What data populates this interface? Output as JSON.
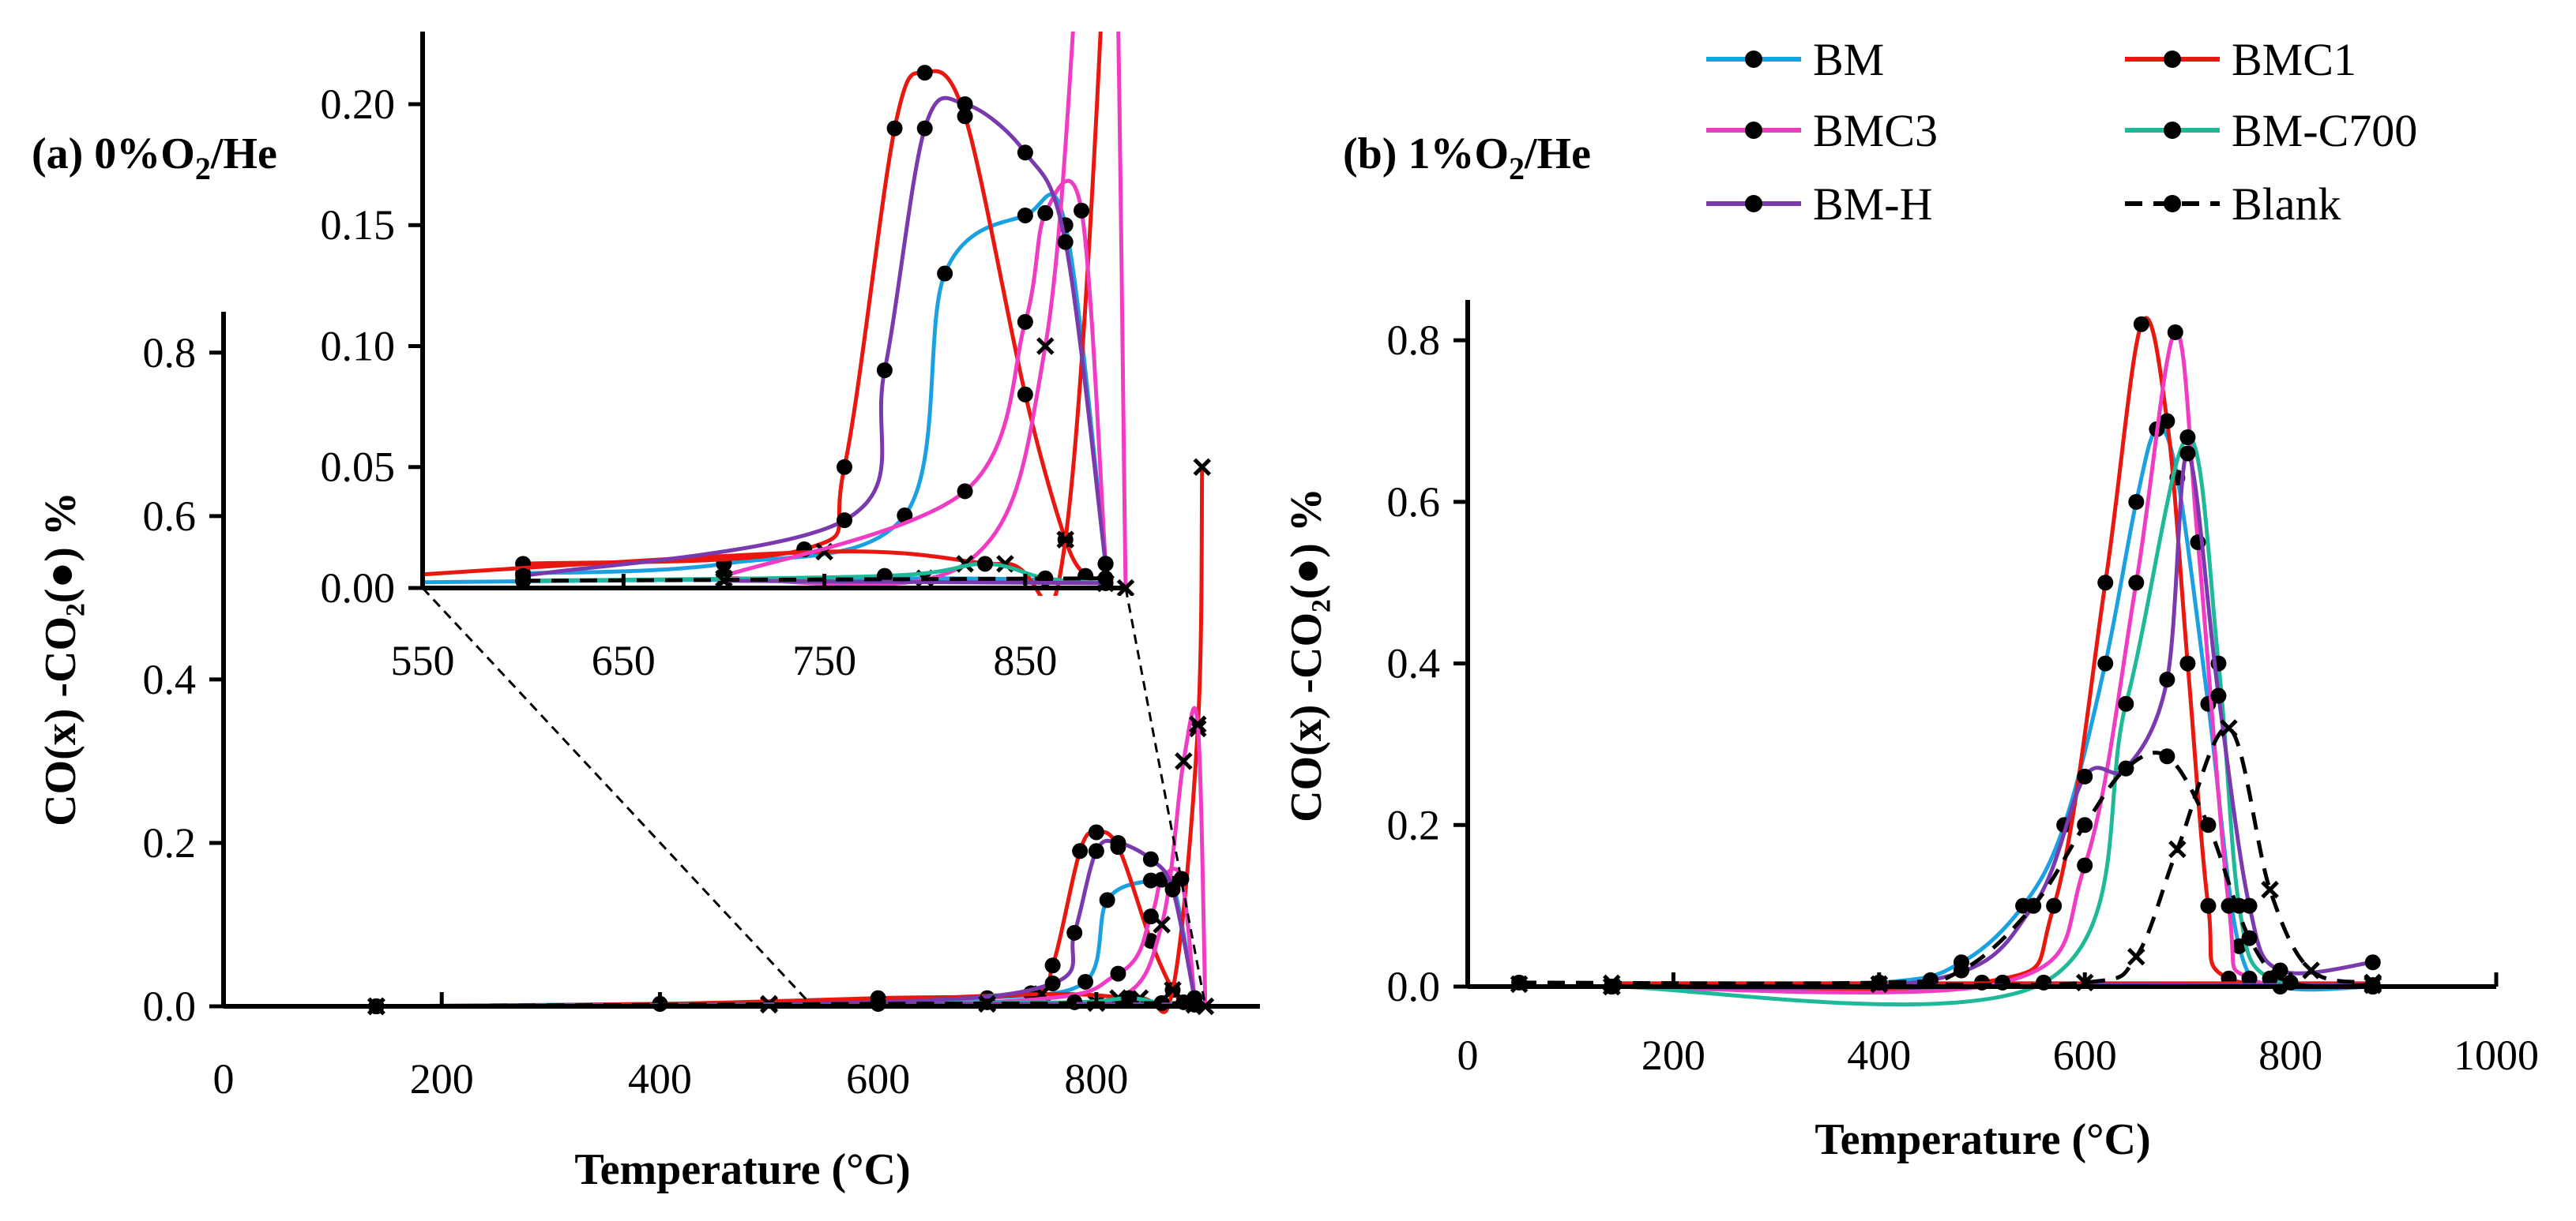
{
  "chart_data": [
    {
      "id": "a",
      "type": "line",
      "title": "(a) 0%O",
      "title_sub": "2",
      "title_suffix": "/He",
      "xlabel": "Temperature (°C)",
      "ylabel": "CO(x) -CO₂(●) %",
      "xlim": [
        0,
        950
      ],
      "ylim": [
        0,
        0.85
      ],
      "xticks": [
        0,
        200,
        400,
        600,
        800
      ],
      "yticks": [
        "0.0",
        "0.2",
        "0.4",
        "0.6",
        "0.8"
      ],
      "series": [
        {
          "name": "BM",
          "color": "#1BA1E2",
          "co2": [
            [
              140,
              0
            ],
            [
              400,
              0.003
            ],
            [
              600,
              0.006
            ],
            [
              700,
              0.01
            ],
            [
              790,
              0.03
            ],
            [
              810,
              0.13
            ],
            [
              850,
              0.154
            ],
            [
              870,
              0.15
            ],
            [
              890,
              0.01
            ]
          ],
          "co": [
            [
              140,
              0
            ],
            [
              500,
              0.002
            ],
            [
              800,
              0.004
            ],
            [
              890,
              0.002
            ]
          ]
        },
        {
          "name": "BMC1",
          "color": "#E8170F",
          "co2": [
            [
              140,
              0
            ],
            [
              400,
              0.003
            ],
            [
              600,
              0.01
            ],
            [
              740,
              0.016
            ],
            [
              760,
              0.05
            ],
            [
              785,
              0.19
            ],
            [
              800,
              0.213
            ],
            [
              820,
              0.195
            ],
            [
              850,
              0.08
            ],
            [
              870,
              0.02
            ],
            [
              880,
              0.005
            ]
          ],
          "co": [
            [
              140,
              0
            ],
            [
              500,
              0.003
            ],
            [
              750,
              0.015
            ],
            [
              840,
              0.01
            ],
            [
              870,
              0.02
            ],
            [
              893,
              0.34
            ],
            [
              897,
              0.66
            ]
          ]
        },
        {
          "name": "BMC3",
          "color": "#F03CC3",
          "co2": [
            [
              140,
              0
            ],
            [
              700,
              0.005
            ],
            [
              820,
              0.04
            ],
            [
              850,
              0.11
            ],
            [
              860,
              0.155
            ],
            [
              878,
              0.156
            ],
            [
              890,
              0.01
            ]
          ],
          "co": [
            [
              140,
              0
            ],
            [
              700,
              0.004
            ],
            [
              820,
              0.01
            ],
            [
              860,
              0.1
            ],
            [
              880,
              0.3
            ],
            [
              893,
              0.345
            ],
            [
              900,
              0
            ]
          ]
        },
        {
          "name": "BM-C700",
          "color": "#1FB99A",
          "co2": [
            [
              140,
              0
            ],
            [
              600,
              0.003
            ],
            [
              780,
              0.005
            ],
            [
              830,
              0.01
            ],
            [
              860,
              0.004
            ],
            [
              890,
              0.002
            ]
          ],
          "co": [
            [
              140,
              0
            ],
            [
              890,
              0.002
            ]
          ]
        },
        {
          "name": "BM-H",
          "color": "#7A3AAE",
          "co2": [
            [
              140,
              0
            ],
            [
              600,
              0.005
            ],
            [
              760,
              0.028
            ],
            [
              780,
              0.09
            ],
            [
              800,
              0.19
            ],
            [
              820,
              0.2
            ],
            [
              850,
              0.18
            ],
            [
              870,
              0.143
            ],
            [
              890,
              0.01
            ]
          ],
          "co": [
            [
              140,
              0
            ],
            [
              700,
              0.003
            ],
            [
              890,
              0.002
            ]
          ]
        },
        {
          "name": "Blank",
          "color": "#000000",
          "co2": [
            [
              140,
              0
            ],
            [
              600,
              0.003
            ],
            [
              890,
              0.004
            ]
          ],
          "co": [
            [
              140,
              0
            ],
            [
              890,
              0.002
            ]
          ]
        }
      ],
      "inset": {
        "xlim": [
          550,
          900
        ],
        "ylim": [
          0,
          0.23
        ],
        "xticks": [
          550,
          650,
          750,
          850
        ],
        "yticks": [
          "0.00",
          "0.05",
          "0.10",
          "0.15",
          "0.20"
        ],
        "connector_points": [
          [
            540,
            0
          ],
          [
            900,
            0.0
          ]
        ]
      }
    },
    {
      "id": "b",
      "type": "line",
      "title": "(b) 1%O",
      "title_sub": "2",
      "title_suffix": "/He",
      "xlabel": "Temperature (°C)",
      "ylabel": "CO(x) -CO₂(●) %",
      "xlim": [
        0,
        1000
      ],
      "ylim": [
        0,
        0.85
      ],
      "xticks": [
        0,
        200,
        400,
        600,
        800,
        1000
      ],
      "yticks": [
        "0.0",
        "0.2",
        "0.4",
        "0.6",
        "0.8"
      ],
      "series": [
        {
          "name": "BM",
          "color": "#1BA1E2",
          "co2": [
            [
              140,
              0
            ],
            [
              400,
              0.005
            ],
            [
              480,
              0.03
            ],
            [
              540,
              0.1
            ],
            [
              580,
              0.2
            ],
            [
              620,
              0.4
            ],
            [
              650,
              0.6
            ],
            [
              670,
              0.69
            ],
            [
              690,
              0.63
            ],
            [
              720,
              0.35
            ],
            [
              750,
              0.05
            ],
            [
              790,
              0
            ],
            [
              880,
              0
            ]
          ],
          "co": [
            [
              140,
              0
            ],
            [
              880,
              0.002
            ]
          ]
        },
        {
          "name": "BMC1",
          "color": "#E8170F",
          "co2": [
            [
              140,
              0
            ],
            [
              500,
              0.005
            ],
            [
              570,
              0.1
            ],
            [
              620,
              0.5
            ],
            [
              655,
              0.82
            ],
            [
              680,
              0.7
            ],
            [
              700,
              0.4
            ],
            [
              720,
              0.1
            ],
            [
              740,
              0.01
            ],
            [
              880,
              0
            ]
          ],
          "co": [
            [
              140,
              0.004
            ],
            [
              880,
              0.004
            ]
          ]
        },
        {
          "name": "BMC3",
          "color": "#F03CC3",
          "co2": [
            [
              140,
              0
            ],
            [
              520,
              0.005
            ],
            [
              600,
              0.15
            ],
            [
              650,
              0.5
            ],
            [
              688,
              0.81
            ],
            [
              710,
              0.55
            ],
            [
              740,
              0.1
            ],
            [
              760,
              0.01
            ],
            [
              880,
              0
            ]
          ],
          "co": [
            [
              140,
              0
            ],
            [
              880,
              0.002
            ]
          ]
        },
        {
          "name": "BM-C700",
          "color": "#1FB99A",
          "co2": [
            [
              140,
              0
            ],
            [
              560,
              0.005
            ],
            [
              640,
              0.35
            ],
            [
              700,
              0.68
            ],
            [
              730,
              0.4
            ],
            [
              750,
              0.1
            ],
            [
              780,
              0.01
            ],
            [
              880,
              0
            ]
          ],
          "co": [
            [
              140,
              0
            ],
            [
              880,
              0.002
            ]
          ]
        },
        {
          "name": "BM-H",
          "color": "#7A3AAE",
          "co2": [
            [
              140,
              0
            ],
            [
              450,
              0.008
            ],
            [
              550,
              0.1
            ],
            [
              600,
              0.26
            ],
            [
              640,
              0.27
            ],
            [
              680,
              0.38
            ],
            [
              700,
              0.66
            ],
            [
              730,
              0.36
            ],
            [
              760,
              0.1
            ],
            [
              790,
              0.02
            ],
            [
              880,
              0.03
            ]
          ],
          "co": [
            [
              140,
              0
            ],
            [
              880,
              0.002
            ]
          ]
        },
        {
          "name": "Blank",
          "color": "#000000",
          "co2": [
            [
              50,
              0.005
            ],
            [
              400,
              0.005
            ],
            [
              480,
              0.02
            ],
            [
              550,
              0.1
            ],
            [
              600,
              0.2
            ],
            [
              640,
              0.27
            ],
            [
              680,
              0.285
            ],
            [
              720,
              0.2
            ],
            [
              760,
              0.06
            ],
            [
              800,
              0.005
            ],
            [
              880,
              0.002
            ]
          ],
          "co": [
            [
              50,
              0.003
            ],
            [
              400,
              0.003
            ],
            [
              600,
              0.005
            ],
            [
              650,
              0.037
            ],
            [
              690,
              0.17
            ],
            [
              740,
              0.32
            ],
            [
              780,
              0.12
            ],
            [
              820,
              0.02
            ],
            [
              880,
              0.005
            ]
          ]
        }
      ]
    }
  ],
  "legend": {
    "placement": "top-right",
    "items": [
      "BM",
      "BMC1",
      "BMC3",
      "BM-C700",
      "BM-H",
      "Blank"
    ]
  }
}
